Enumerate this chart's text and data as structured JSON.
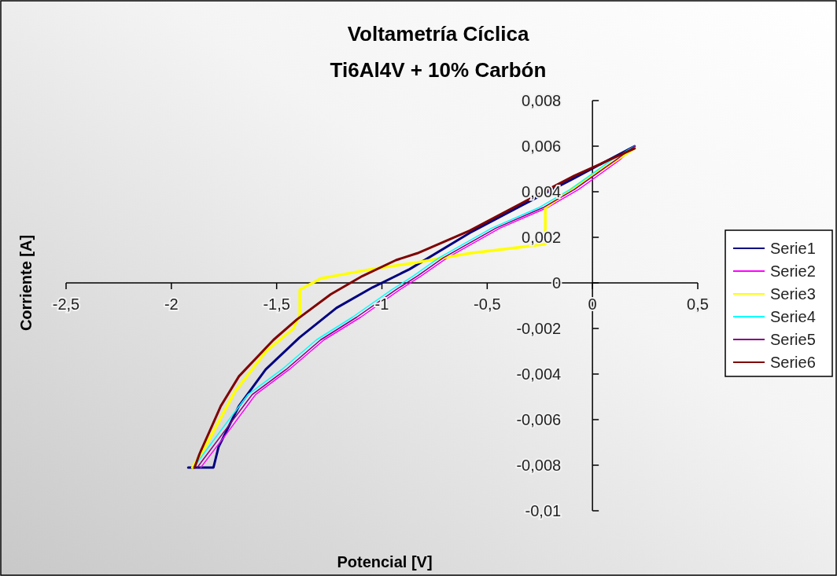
{
  "chart_data": {
    "type": "line",
    "title": "Voltametría Cíclica",
    "subtitle": "Ti6Al4V + 10% Carbón",
    "xlabel": "Potencial [V]",
    "ylabel": "Corriente [A]",
    "xlim": [
      -2.5,
      0.5
    ],
    "xticks": [
      {
        "value": -2.5,
        "label": "-2,5"
      },
      -2,
      {
        "value": -1.5,
        "label": "-1,5"
      },
      -1,
      {
        "value": -0.5,
        "label": "-0,5"
      },
      0,
      {
        "value": 0.5,
        "label": "0,5"
      }
    ],
    "ylim": [
      -0.01,
      0.008
    ],
    "yticks": [
      {
        "value": -0.01,
        "label": "-0,01"
      },
      {
        "value": -0.008,
        "label": "-0,008"
      },
      {
        "value": -0.006,
        "label": "-0,006"
      },
      {
        "value": -0.004,
        "label": "-0,004"
      },
      {
        "value": -0.002,
        "label": "-0,002"
      },
      0,
      {
        "value": 0.002,
        "label": "0,002"
      },
      {
        "value": 0.004,
        "label": "0,004"
      },
      {
        "value": 0.006,
        "label": "0,006"
      },
      {
        "value": 0.008,
        "label": "0,008"
      }
    ],
    "legend": "right",
    "series": [
      {
        "name": "Serie1",
        "color": "#000080",
        "x": [
          -1.92,
          -1.8,
          -1.776,
          -1.679,
          -1.552,
          -1.392,
          -1.216,
          -1.045,
          -0.869,
          -0.582,
          -0.336,
          -0.086,
          0.2
        ],
        "values": [
          -0.0081,
          -0.0081,
          -0.0072,
          -0.0054,
          -0.0038,
          -0.0024,
          -0.0011,
          -0.0002,
          0.0006,
          0.0022,
          0.0034,
          0.0046,
          0.006
        ]
      },
      {
        "name": "Serie2",
        "color": "#ff00ff",
        "x": [
          -1.86,
          -1.72,
          -1.6,
          -1.44,
          -1.275,
          -1.1,
          -0.915,
          -0.815,
          -0.69,
          -0.44,
          -0.215,
          -0.066,
          0.13,
          0.2
        ],
        "values": [
          -0.0081,
          -0.0064,
          -0.0049,
          -0.0038,
          -0.0025,
          -0.0015,
          -0.0003,
          0.0003,
          0.0011,
          0.0024,
          0.0033,
          0.0041,
          0.0054,
          0.006
        ]
      },
      {
        "name": "Serie3",
        "color": "#ffff00",
        "x": [
          -1.9,
          -1.84,
          -1.7,
          -1.55,
          -1.42,
          -1.39,
          -1.39,
          -1.29,
          -1.05,
          -0.832,
          -0.582,
          -0.224,
          -0.224,
          -0.086,
          0.2
        ],
        "values": [
          -0.0081,
          -0.0072,
          -0.0048,
          -0.003,
          -0.002,
          -0.0014,
          -0.0003,
          0.0002,
          0.0006,
          0.0009,
          0.0013,
          0.0017,
          0.0033,
          0.0042,
          0.0059
        ]
      },
      {
        "name": "Serie4",
        "color": "#00ffff",
        "x": [
          -1.895,
          -1.759,
          -1.636,
          -1.475,
          -1.311,
          -1.139,
          -0.953,
          -0.852,
          -0.729,
          -0.479,
          -0.255,
          -0.106,
          0.092,
          0.2
        ],
        "values": [
          -0.0081,
          -0.0064,
          -0.0049,
          -0.0038,
          -0.0025,
          -0.0015,
          -0.0003,
          0.0003,
          0.0011,
          0.0024,
          0.0033,
          0.0041,
          0.0054,
          0.006
        ]
      },
      {
        "name": "Serie5",
        "color": "#800080",
        "x": [
          -1.877,
          -1.739,
          -1.616,
          -1.455,
          -1.291,
          -1.119,
          -0.933,
          -0.832,
          -0.709,
          -0.459,
          -0.235,
          -0.086,
          0.112,
          0.2
        ],
        "values": [
          -0.0081,
          -0.0064,
          -0.0049,
          -0.0038,
          -0.0025,
          -0.0015,
          -0.0003,
          0.0003,
          0.0011,
          0.0024,
          0.0033,
          0.0041,
          0.0054,
          0.006
        ]
      },
      {
        "name": "Serie6",
        "color": "#800000",
        "x": [
          -1.89,
          -1.866,
          -1.765,
          -1.679,
          -1.515,
          -1.403,
          -1.243,
          -1.093,
          -0.933,
          -0.832,
          -0.582,
          -0.336,
          -0.086,
          0.2
        ],
        "values": [
          -0.0081,
          -0.0075,
          -0.0054,
          -0.0041,
          -0.0025,
          -0.0016,
          -0.0005,
          0.0003,
          0.001,
          0.0013,
          0.0023,
          0.0035,
          0.0047,
          0.0059
        ]
      }
    ]
  }
}
